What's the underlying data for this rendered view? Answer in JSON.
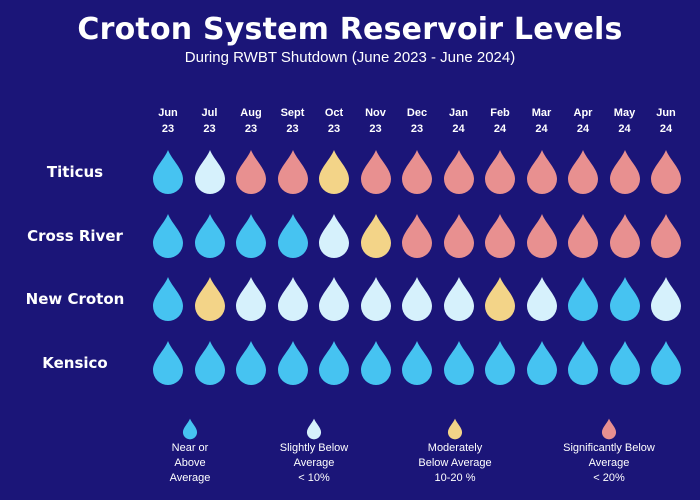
{
  "title": "Croton System Reservoir Levels",
  "subtitle": "During RWBT Shutdown (June 2023 - June 2024)",
  "colors": {
    "background": "#1b1578",
    "near_or_above": "#46c3f1",
    "slightly_below": "#d6f1fc",
    "moderately_below": "#f3d488",
    "significantly_below": "#e89090"
  },
  "chart_data": {
    "type": "table",
    "months": [
      {
        "month": "Jun",
        "year": "23"
      },
      {
        "month": "Jul",
        "year": "23"
      },
      {
        "month": "Aug",
        "year": "23"
      },
      {
        "month": "Sept",
        "year": "23"
      },
      {
        "month": "Oct",
        "year": "23"
      },
      {
        "month": "Nov",
        "year": "23"
      },
      {
        "month": "Dec",
        "year": "23"
      },
      {
        "month": "Jan",
        "year": "24"
      },
      {
        "month": "Feb",
        "year": "24"
      },
      {
        "month": "Mar",
        "year": "24"
      },
      {
        "month": "Apr",
        "year": "24"
      },
      {
        "month": "May",
        "year": "24"
      },
      {
        "month": "Jun",
        "year": "24"
      }
    ],
    "reservoirs": [
      {
        "name": "Titicus",
        "levels": [
          "near_or_above",
          "slightly_below",
          "significantly_below",
          "significantly_below",
          "moderately_below",
          "significantly_below",
          "significantly_below",
          "significantly_below",
          "significantly_below",
          "significantly_below",
          "significantly_below",
          "significantly_below",
          "significantly_below"
        ]
      },
      {
        "name": "Cross River",
        "levels": [
          "near_or_above",
          "near_or_above",
          "near_or_above",
          "near_or_above",
          "slightly_below",
          "moderately_below",
          "significantly_below",
          "significantly_below",
          "significantly_below",
          "significantly_below",
          "significantly_below",
          "significantly_below",
          "significantly_below"
        ]
      },
      {
        "name": "New Croton",
        "levels": [
          "near_or_above",
          "moderately_below",
          "slightly_below",
          "slightly_below",
          "slightly_below",
          "slightly_below",
          "slightly_below",
          "slightly_below",
          "moderately_below",
          "slightly_below",
          "near_or_above",
          "near_or_above",
          "slightly_below"
        ]
      },
      {
        "name": "Kensico",
        "levels": [
          "near_or_above",
          "near_or_above",
          "near_or_above",
          "near_or_above",
          "near_or_above",
          "near_or_above",
          "near_or_above",
          "near_or_above",
          "near_or_above",
          "near_or_above",
          "near_or_above",
          "near_or_above",
          "near_or_above"
        ]
      }
    ],
    "legend": [
      {
        "level": "near_or_above",
        "icon": "water-drop-icon",
        "text": "Near or\nAbove\nAverage"
      },
      {
        "level": "slightly_below",
        "icon": "water-drop-icon",
        "text": "Slightly Below\nAverage\n< 10%"
      },
      {
        "level": "moderately_below",
        "icon": "water-drop-icon",
        "text": "Moderately\nBelow Average\n10-20 %"
      },
      {
        "level": "significantly_below",
        "icon": "water-drop-icon",
        "text": "Significantly Below\nAverage\n< 20%"
      }
    ]
  }
}
